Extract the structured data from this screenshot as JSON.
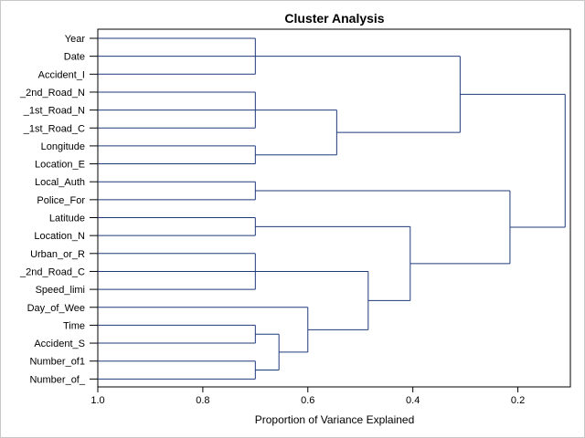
{
  "chart_data": {
    "type": "dendrogram",
    "title": "Cluster Analysis",
    "xlabel": "Proportion of Variance Explained",
    "xlim": [
      1.0,
      0.1
    ],
    "x_ticks": [
      1.0,
      0.8,
      0.6,
      0.4,
      0.2
    ],
    "x_tick_labels": [
      "1.0",
      "0.8",
      "0.6",
      "0.4",
      "0.2"
    ],
    "line_color": "#1f3a7a",
    "leaves": [
      "Year",
      "Date",
      "Accident_I",
      "_2nd_Road_N",
      "_1st_Road_N",
      "_1st_Road_C",
      "Longitude",
      "Location_E",
      "Local_Auth",
      "Police_For",
      "Latitude",
      "Location_N",
      "Urban_or_R",
      "_2nd_Road_C",
      "Speed_limi",
      "Day_of_Wee",
      "Time",
      "Accident_S",
      "Number_of1",
      "Number_of_"
    ],
    "merges": [
      {
        "children": [
          "Year",
          "Date",
          "Accident_I"
        ],
        "value": 0.7
      },
      {
        "children": [
          "_2nd_Road_N",
          "_1st_Road_N",
          "_1st_Road_C"
        ],
        "value": 0.7
      },
      {
        "children": [
          "Longitude",
          "Location_E"
        ],
        "value": 0.7
      },
      {
        "children": [
          "Local_Auth",
          "Police_For"
        ],
        "value": 0.7
      },
      {
        "children": [
          "Latitude",
          "Location_N"
        ],
        "value": 0.7
      },
      {
        "children": [
          "Urban_or_R",
          "_2nd_Road_C",
          "Speed_limi"
        ],
        "value": 0.7
      },
      {
        "children": [
          "Time",
          "Accident_S"
        ],
        "value": 0.7
      },
      {
        "children": [
          "Number_of1",
          "Number_of_"
        ],
        "value": 0.7
      },
      {
        "children": [
          "c7",
          "c8"
        ],
        "value": 0.655
      },
      {
        "children": [
          "Day_of_Wee",
          "c9"
        ],
        "value": 0.6
      },
      {
        "children": [
          "c6",
          "c10"
        ],
        "value": 0.485
      },
      {
        "children": [
          "c5",
          "c11"
        ],
        "value": 0.405
      },
      {
        "children": [
          "c4",
          "c12"
        ],
        "value": 0.215
      },
      {
        "children": [
          "c2",
          "c3"
        ],
        "value": 0.545
      },
      {
        "children": [
          "c1",
          "c14"
        ],
        "value": 0.31
      },
      {
        "children": [
          "c15",
          "c13"
        ],
        "value": 0.11
      }
    ]
  }
}
